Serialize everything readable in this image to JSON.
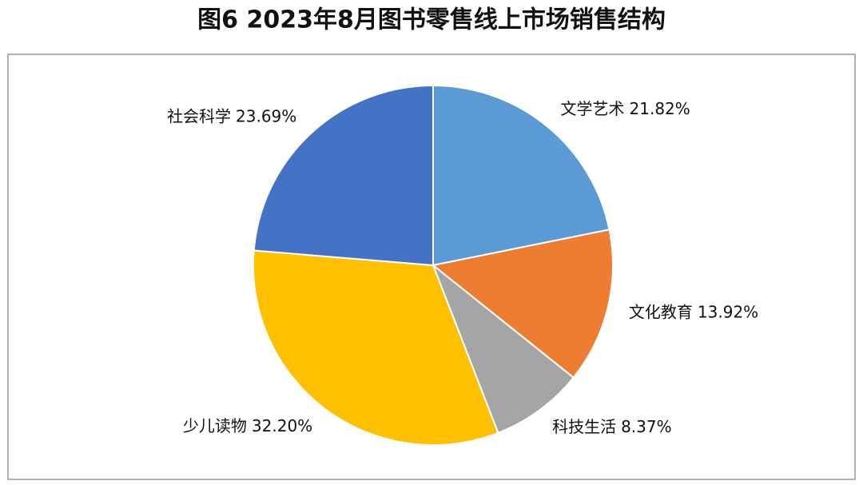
{
  "chart_data": {
    "type": "pie",
    "title": "图6 2023年8月图书零售线上市场销售结构",
    "categories": [
      "文学艺术",
      "文化教育",
      "科技生活",
      "少儿读物",
      "社会科学"
    ],
    "values": [
      21.82,
      13.92,
      8.37,
      32.2,
      23.69
    ],
    "value_labels": [
      "21.82%",
      "13.92%",
      "8.37%",
      "32.20%",
      "23.69%"
    ],
    "colors": [
      "#5b9bd5",
      "#ed7d31",
      "#a5a5a5",
      "#ffc000",
      "#4472c4"
    ]
  }
}
